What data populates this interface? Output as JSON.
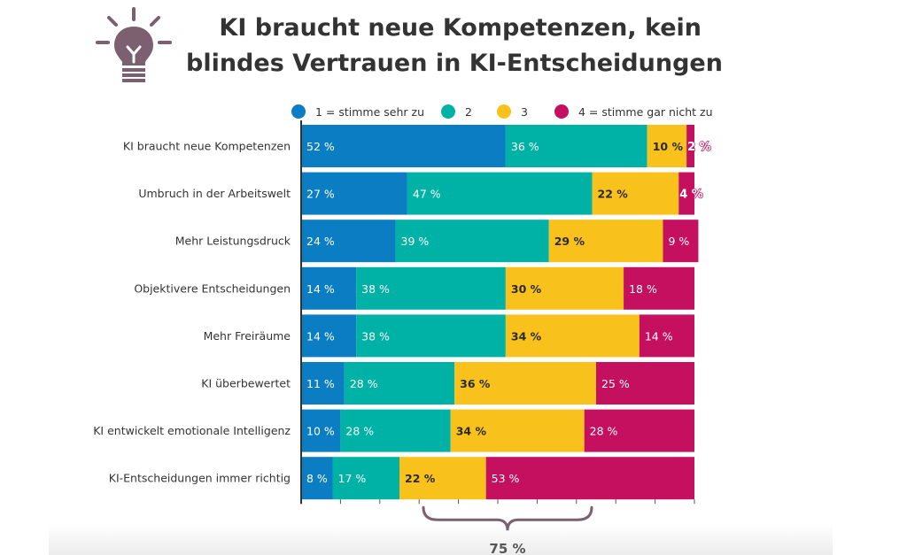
{
  "chart_data": {
    "type": "bar",
    "stacked": true,
    "orientation": "horizontal",
    "title": [
      "KI braucht neue Kompetenzen, kein",
      "blindes Vertrauen in KI-Entscheidungen"
    ],
    "categories": [
      "KI braucht neue Kompetenzen",
      "Umbruch in der Arbeitswelt",
      "Mehr Leistungsdruck",
      "Objektivere Entscheidungen",
      "Mehr Freiräume",
      "KI überbewertet",
      "KI entwickelt emotionale Intelligenz",
      "KI-Entscheidungen immer richtig"
    ],
    "series": [
      {
        "name": "1 = stimme sehr zu",
        "color": "#0a7dc3",
        "label_color": "#ffffff",
        "values": [
          52,
          27,
          24,
          14,
          14,
          11,
          10,
          8
        ]
      },
      {
        "name": "2",
        "color": "#00b2a6",
        "label_color": "#ffffff",
        "values": [
          36,
          47,
          39,
          38,
          38,
          28,
          28,
          17
        ]
      },
      {
        "name": "3",
        "color": "#f9c11b",
        "label_color": "#2a2a2a",
        "values": [
          10,
          22,
          29,
          30,
          34,
          36,
          34,
          22
        ]
      },
      {
        "name": "4 = stimme gar nicht zu",
        "color": "#c4105f",
        "label_color": "#ffffff",
        "values": [
          2,
          4,
          9,
          18,
          14,
          25,
          28,
          53
        ]
      }
    ],
    "value_suffix": " %",
    "xlim": [
      0,
      100
    ],
    "legend": "top",
    "annotation": {
      "text": "75 %",
      "target": "KI-Entscheidungen immer richtig",
      "series": [
        "3",
        "4 = stimme gar nicht zu"
      ]
    }
  },
  "icon": "lightbulb-icon",
  "text_color": "#333333"
}
